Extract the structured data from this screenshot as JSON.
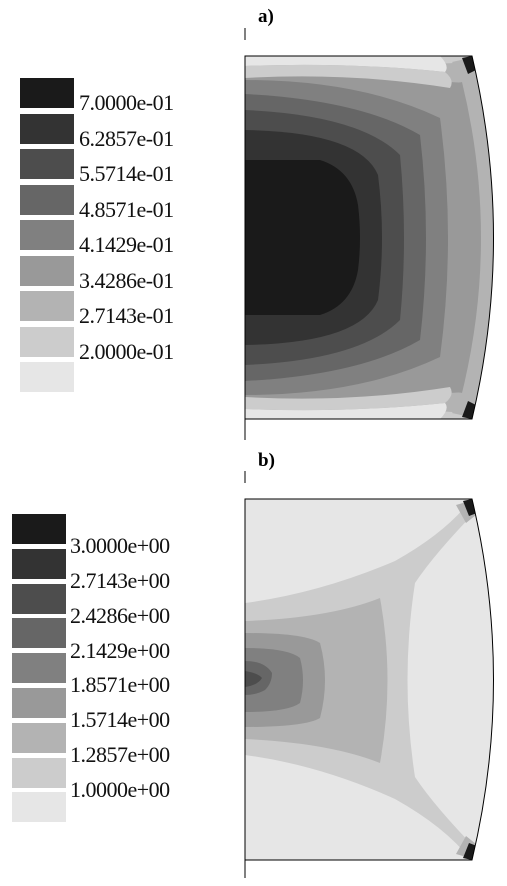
{
  "panel_a": {
    "label": "a)",
    "legend": {
      "colors": [
        "#1a1a1a",
        "#333333",
        "#4d4d4d",
        "#666666",
        "#808080",
        "#999999",
        "#b3b3b3",
        "#cccccc",
        "#e6e6e6"
      ],
      "values": [
        "7.0000e-01",
        "6.2857e-01",
        "5.5714e-01",
        "4.8571e-01",
        "4.1429e-01",
        "3.4286e-01",
        "2.7143e-01",
        "2.0000e-01"
      ]
    }
  },
  "panel_b": {
    "label": "b)",
    "legend": {
      "colors": [
        "#1a1a1a",
        "#333333",
        "#4d4d4d",
        "#666666",
        "#808080",
        "#999999",
        "#b3b3b3",
        "#cccccc",
        "#e6e6e6"
      ],
      "values": [
        "3.0000e+00",
        "2.7143e+00",
        "2.4286e+00",
        "2.1429e+00",
        "1.8571e+00",
        "1.5714e+00",
        "1.2857e+00",
        "1.0000e+00"
      ]
    }
  }
}
